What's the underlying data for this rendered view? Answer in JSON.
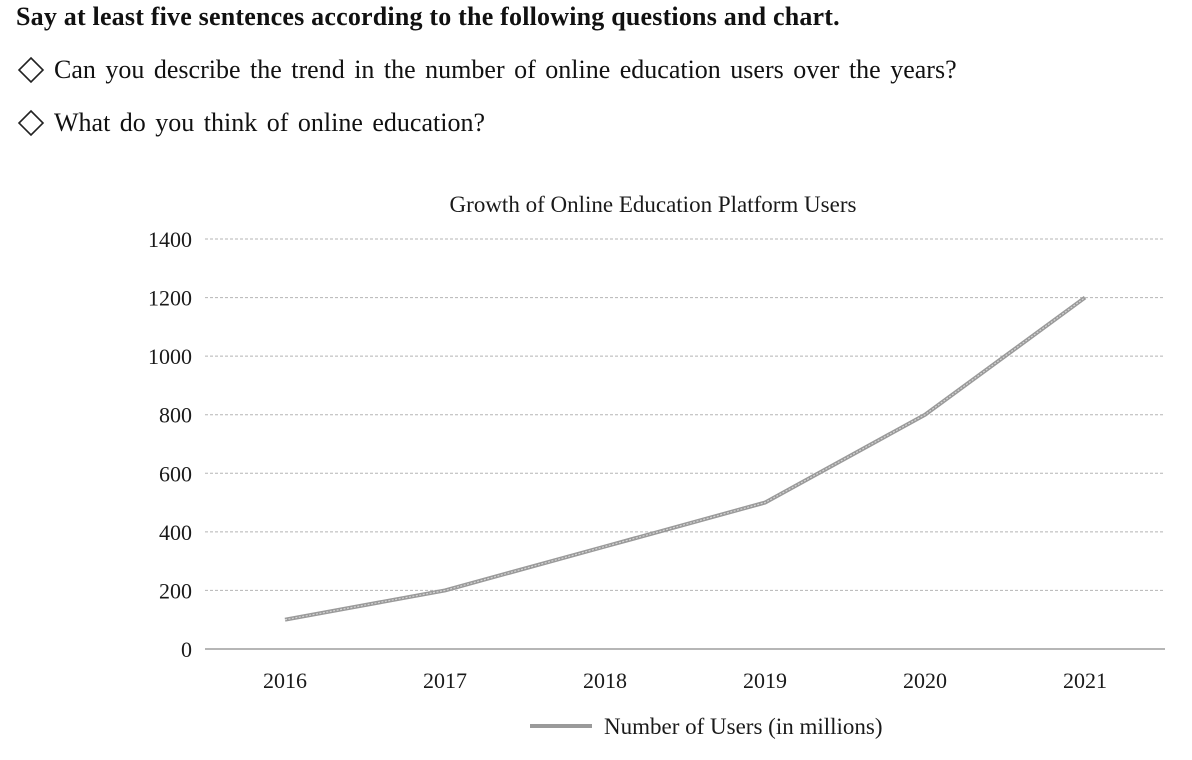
{
  "instruction": "Say at least five sentences according to the following questions and chart.",
  "questions": [
    {
      "icon": "diamond-outline-icon",
      "text": "Can you describe the trend in the number of online education users over the years?"
    },
    {
      "icon": "diamond-outline-icon",
      "text": "What do you think of online education?"
    }
  ],
  "chart_data": {
    "type": "line",
    "title": "Growth of Online Education Platform Users",
    "categories": [
      "2016",
      "2017",
      "2018",
      "2019",
      "2020",
      "2021"
    ],
    "series": [
      {
        "name": "Number of Users (in millions)",
        "values": [
          100,
          200,
          350,
          500,
          800,
          1200
        ]
      }
    ],
    "ylim": [
      0,
      1400
    ],
    "yticks": [
      "0",
      "200",
      "400",
      "600",
      "800",
      "1000",
      "1200",
      "1400"
    ],
    "grid": true,
    "legend_position": "bottom",
    "line_color": "#9a9a9a"
  }
}
